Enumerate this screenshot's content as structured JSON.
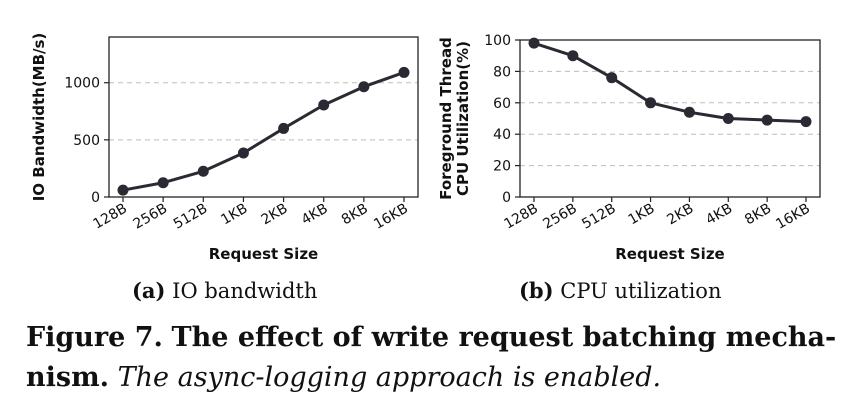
{
  "chart_data": [
    {
      "type": "line",
      "categories": [
        "128B",
        "256B",
        "512B",
        "1KB",
        "2KB",
        "4KB",
        "8KB",
        "16KB"
      ],
      "series": [
        {
          "values": [
            60,
            125,
            225,
            385,
            600,
            805,
            965,
            1090
          ]
        }
      ],
      "xlabel": "Request Size",
      "ylabel": "IO Bandwidth(MB/s)",
      "ylim": [
        0,
        1400
      ],
      "yticks": [
        0,
        500,
        1000
      ],
      "grid": true,
      "color": "#2a2a33"
    },
    {
      "type": "line",
      "categories": [
        "128B",
        "256B",
        "512B",
        "1KB",
        "2KB",
        "4KB",
        "8KB",
        "16KB"
      ],
      "series": [
        {
          "values": [
            98,
            90,
            76,
            60,
            54,
            50,
            49,
            48
          ]
        }
      ],
      "xlabel": "Request Size",
      "ylabel_lines": [
        "Foreground Thread",
        "CPU Utilization(%)"
      ],
      "ylim": [
        0,
        100
      ],
      "yticks": [
        0,
        20,
        40,
        60,
        80,
        100
      ],
      "grid": true,
      "color": "#2a2a33"
    }
  ],
  "subcaptions": [
    {
      "label": "(a)",
      "text": "IO bandwidth"
    },
    {
      "label": "(b)",
      "text": "CPU utilization"
    }
  ],
  "caption": {
    "label": "Figure 7.",
    "title": "The effect of write request batching mecha-nism.",
    "note": "The async-logging approach is enabled."
  }
}
